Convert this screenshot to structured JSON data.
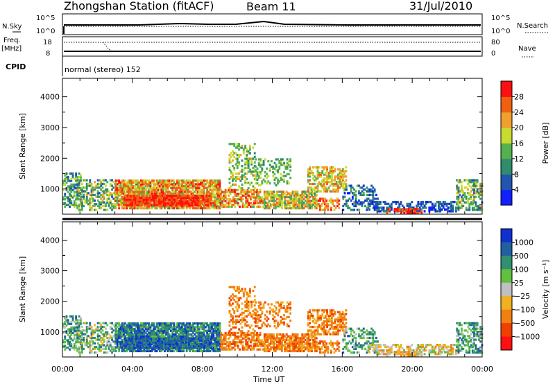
{
  "header": {
    "title": "Zhongshan Station (fitACF)",
    "beam": "Beam 11",
    "date": "31/Jul/2010"
  },
  "status_panels": {
    "nsky_label": "N.Sky",
    "nsearch_label": "N.Search",
    "nsky_ticks": [
      "10^5",
      "10^0"
    ],
    "nsearch_ticks": [
      "10^5",
      "10^0"
    ],
    "freq_label_top": "Freq.",
    "freq_label_unit": "[MHz]",
    "freq_ticks": [
      "18",
      "8"
    ],
    "nave_label": "Nave",
    "nave_ticks": [
      "80",
      "0"
    ],
    "cpid_label": "CPID",
    "cpid_text": "normal (stereo) 152"
  },
  "chart_data": [
    {
      "type": "heatmap",
      "ylabel": "Slant Range [km]",
      "xlabel": "Time UT",
      "x_ticks": [
        "00:00",
        "04:00",
        "08:00",
        "12:00",
        "16:00",
        "20:00",
        "00:00"
      ],
      "y_ticks": [
        "1000",
        "2000",
        "3000",
        "4000"
      ],
      "xlim_hours": [
        0,
        24
      ],
      "ylim_km": [
        180,
        4600
      ],
      "colorbar": {
        "label": "Power [dB]",
        "ticks": [
          "4",
          "8",
          "12",
          "16",
          "20",
          "24",
          "28"
        ],
        "colors": [
          "#1020ff",
          "#2255b0",
          "#2f8c6c",
          "#55b050",
          "#c8dc30",
          "#f0a030",
          "#f06010",
          "#ff1010"
        ]
      }
    },
    {
      "type": "heatmap",
      "ylabel": "Slant Range [km]",
      "xlabel": "Time UT",
      "x_ticks": [
        "00:00",
        "04:00",
        "08:00",
        "12:00",
        "16:00",
        "20:00",
        "00:00"
      ],
      "y_ticks": [
        "1000",
        "2000",
        "3000",
        "4000"
      ],
      "xlim_hours": [
        0,
        24
      ],
      "ylim_km": [
        180,
        4600
      ],
      "colorbar": {
        "label": "Velocity [m s⁻¹]",
        "ticks": [
          "1000",
          "500",
          "100",
          "25",
          "−25",
          "−100",
          "−500",
          "−1000"
        ],
        "colors": [
          "#1030d0",
          "#2060a0",
          "#309070",
          "#60c040",
          "#c0c0c0",
          "#f0b020",
          "#f08010",
          "#f04000",
          "#ff1010"
        ]
      }
    }
  ]
}
